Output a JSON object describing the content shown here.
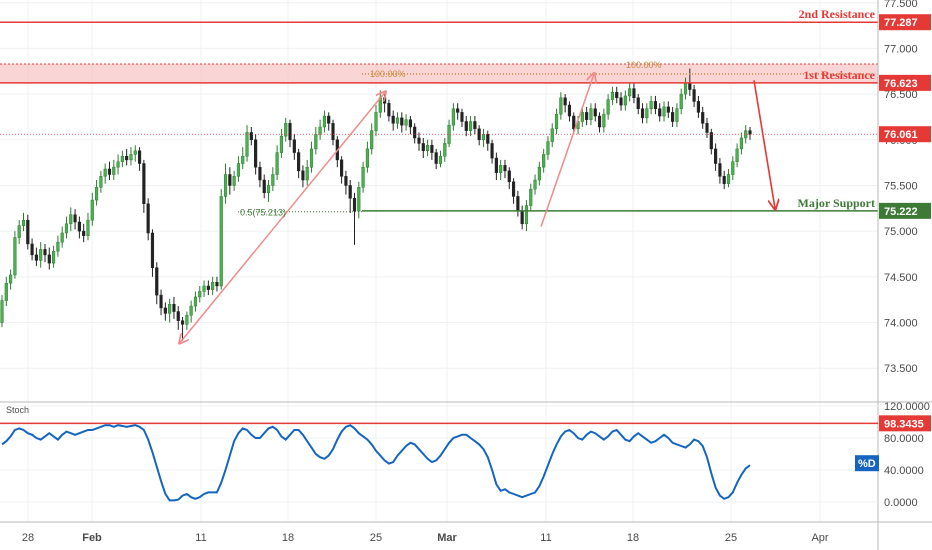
{
  "chart_data": [
    {
      "type": "candlestick",
      "price_axis": {
        "ylim": [
          73.13,
          77.53
        ],
        "ticks": [
          "77.500",
          "77.000",
          "76.500",
          "76.000",
          "75.500",
          "75.000",
          "74.500",
          "74.000",
          "73.500"
        ],
        "tick_values": [
          77.5,
          77.0,
          76.5,
          76.0,
          75.5,
          75.0,
          74.5,
          74.0,
          73.5
        ]
      },
      "date_axis": {
        "labels": [
          "28",
          "Feb",
          "11",
          "18",
          "25",
          "Mar",
          "11",
          "18",
          "25",
          "Apr"
        ],
        "bold": [
          false,
          true,
          false,
          false,
          false,
          true,
          false,
          false,
          false,
          false
        ]
      },
      "levels": {
        "second_resistance": {
          "label": "2nd Resistance",
          "value": 77.287,
          "tag": "77.287",
          "color": "#e53935"
        },
        "first_resistance": {
          "label": "1st Resistance",
          "value": 76.623,
          "tag": "76.623",
          "color": "#e53935"
        },
        "last_price": {
          "value": 76.061,
          "tag": "76.061",
          "color": "#e53935"
        },
        "major_support": {
          "label": "Major Support",
          "value": 75.222,
          "tag": "75.222",
          "color": "#3d7a36"
        }
      },
      "fibonacci": {
        "label_a": "100.00%",
        "label_b": "100.00%",
        "label_c": "0.5(75.213)"
      },
      "candles": [
        [
          74.0,
          74.24,
          74.3,
          73.95
        ],
        [
          74.24,
          74.43,
          74.5,
          74.18
        ],
        [
          74.43,
          74.52,
          74.58,
          74.36
        ],
        [
          74.52,
          74.93,
          75.0,
          74.48
        ],
        [
          74.93,
          75.06,
          75.12,
          74.86
        ],
        [
          75.06,
          75.12,
          75.2,
          75.0
        ],
        [
          75.12,
          74.86,
          75.18,
          74.8
        ],
        [
          74.86,
          74.74,
          74.92,
          74.68
        ],
        [
          74.74,
          74.68,
          74.82,
          74.62
        ],
        [
          74.68,
          74.8,
          74.88,
          74.6
        ],
        [
          74.8,
          74.74,
          74.86,
          74.66
        ],
        [
          74.74,
          74.65,
          74.82,
          74.58
        ],
        [
          74.65,
          74.78,
          74.84,
          74.6
        ],
        [
          74.78,
          74.88,
          74.95,
          74.72
        ],
        [
          74.88,
          74.98,
          75.05,
          74.82
        ],
        [
          74.98,
          75.08,
          75.16,
          74.92
        ],
        [
          75.08,
          75.18,
          75.26,
          75.0
        ],
        [
          75.18,
          75.1,
          75.24,
          75.02
        ],
        [
          75.1,
          75.0,
          75.16,
          74.92
        ],
        [
          75.0,
          74.95,
          75.08,
          74.88
        ],
        [
          74.95,
          75.12,
          75.2,
          74.9
        ],
        [
          75.12,
          75.34,
          75.42,
          75.06
        ],
        [
          75.34,
          75.48,
          75.56,
          75.28
        ],
        [
          75.48,
          75.6,
          75.66,
          75.42
        ],
        [
          75.6,
          75.68,
          75.74,
          75.52
        ],
        [
          75.68,
          75.62,
          75.76,
          75.56
        ],
        [
          75.62,
          75.7,
          75.78,
          75.56
        ],
        [
          75.7,
          75.76,
          75.84,
          75.62
        ],
        [
          75.76,
          75.82,
          75.88,
          75.7
        ],
        [
          75.82,
          75.78,
          75.9,
          75.72
        ],
        [
          75.78,
          75.84,
          75.92,
          75.72
        ],
        [
          75.84,
          75.88,
          75.94,
          75.76
        ],
        [
          75.88,
          75.74,
          75.92,
          75.66
        ],
        [
          75.74,
          75.3,
          75.78,
          75.2
        ],
        [
          75.3,
          74.98,
          75.36,
          74.9
        ],
        [
          74.98,
          74.6,
          75.02,
          74.5
        ],
        [
          74.6,
          74.3,
          74.66,
          74.2
        ],
        [
          74.3,
          74.16,
          74.36,
          74.08
        ],
        [
          74.16,
          74.1,
          74.22,
          74.02
        ],
        [
          74.1,
          74.2,
          74.26,
          74.0
        ],
        [
          74.2,
          74.12,
          74.28,
          74.04
        ],
        [
          74.12,
          74.02,
          74.18,
          73.92
        ],
        [
          74.02,
          73.98,
          74.06,
          73.8
        ],
        [
          73.98,
          74.08,
          74.12,
          73.92
        ],
        [
          74.08,
          74.18,
          74.24,
          74.0
        ],
        [
          74.18,
          74.28,
          74.34,
          74.12
        ],
        [
          74.28,
          74.34,
          74.4,
          74.22
        ],
        [
          74.34,
          74.4,
          74.46,
          74.28
        ],
        [
          74.4,
          74.36,
          74.46,
          74.3
        ],
        [
          74.36,
          74.44,
          74.5,
          74.3
        ],
        [
          74.44,
          74.4,
          74.5,
          74.34
        ],
        [
          74.4,
          75.38,
          75.46,
          74.36
        ],
        [
          75.38,
          75.62,
          75.74,
          75.3
        ],
        [
          75.62,
          75.5,
          75.7,
          75.4
        ],
        [
          75.5,
          75.6,
          75.66,
          75.44
        ],
        [
          75.6,
          75.74,
          75.82,
          75.54
        ],
        [
          75.74,
          75.82,
          75.92,
          75.68
        ],
        [
          75.82,
          76.08,
          76.16,
          75.76
        ],
        [
          76.08,
          76.0,
          76.14,
          75.94
        ],
        [
          76.0,
          75.7,
          76.06,
          75.62
        ],
        [
          75.7,
          75.56,
          75.76,
          75.48
        ],
        [
          75.56,
          75.42,
          75.62,
          75.36
        ],
        [
          75.42,
          75.5,
          75.56,
          75.32
        ],
        [
          75.5,
          75.62,
          75.7,
          75.44
        ],
        [
          75.62,
          75.86,
          75.94,
          75.56
        ],
        [
          75.86,
          76.04,
          76.12,
          75.8
        ],
        [
          76.04,
          76.18,
          76.24,
          75.98
        ],
        [
          76.18,
          76.0,
          76.22,
          75.92
        ],
        [
          76.0,
          75.86,
          76.06,
          75.78
        ],
        [
          75.86,
          75.66,
          75.9,
          75.58
        ],
        [
          75.66,
          75.56,
          75.72,
          75.48
        ],
        [
          75.56,
          75.7,
          75.78,
          75.5
        ],
        [
          75.7,
          75.9,
          75.98,
          75.64
        ],
        [
          75.9,
          76.06,
          76.14,
          75.84
        ],
        [
          76.06,
          76.14,
          76.22,
          76.0
        ],
        [
          76.14,
          76.26,
          76.32,
          76.08
        ],
        [
          76.26,
          76.18,
          76.3,
          76.1
        ],
        [
          76.18,
          76.0,
          76.22,
          75.94
        ],
        [
          76.0,
          75.78,
          76.04,
          75.7
        ],
        [
          75.78,
          75.6,
          75.82,
          75.52
        ],
        [
          75.6,
          75.5,
          75.66,
          75.4
        ],
        [
          75.5,
          75.36,
          75.56,
          75.2
        ],
        [
          75.36,
          75.22,
          75.42,
          74.85
        ],
        [
          75.22,
          75.48,
          75.54,
          75.14
        ],
        [
          75.48,
          75.7,
          75.76,
          75.42
        ],
        [
          75.7,
          75.9,
          75.98,
          75.64
        ],
        [
          75.9,
          76.1,
          76.18,
          75.84
        ],
        [
          76.1,
          76.3,
          76.38,
          76.04
        ],
        [
          76.3,
          76.46,
          76.54,
          76.24
        ],
        [
          76.46,
          76.4,
          76.5,
          76.3
        ],
        [
          76.4,
          76.26,
          76.44,
          76.2
        ],
        [
          76.26,
          76.18,
          76.32,
          76.1
        ],
        [
          76.18,
          76.24,
          76.3,
          76.12
        ],
        [
          76.24,
          76.16,
          76.3,
          76.08
        ],
        [
          76.16,
          76.22,
          76.28,
          76.1
        ],
        [
          76.22,
          76.14,
          76.26,
          76.06
        ],
        [
          76.14,
          76.02,
          76.18,
          75.96
        ],
        [
          76.02,
          75.96,
          76.08,
          75.88
        ],
        [
          75.96,
          75.88,
          76.02,
          75.8
        ],
        [
          75.88,
          75.94,
          76.0,
          75.82
        ],
        [
          75.94,
          75.86,
          76.0,
          75.78
        ],
        [
          75.86,
          75.74,
          75.9,
          75.68
        ],
        [
          75.74,
          75.82,
          75.88,
          75.7
        ],
        [
          75.82,
          75.96,
          76.02,
          75.76
        ],
        [
          75.96,
          76.16,
          76.22,
          75.92
        ],
        [
          76.16,
          76.34,
          76.4,
          76.1
        ],
        [
          76.34,
          76.3,
          76.4,
          76.22
        ],
        [
          76.3,
          76.2,
          76.34,
          76.14
        ],
        [
          76.2,
          76.1,
          76.26,
          76.04
        ],
        [
          76.1,
          76.2,
          76.26,
          76.04
        ],
        [
          76.2,
          76.12,
          76.26,
          76.06
        ],
        [
          76.12,
          76.0,
          76.16,
          75.94
        ],
        [
          76.0,
          76.06,
          76.12,
          75.92
        ],
        [
          76.06,
          75.96,
          76.1,
          75.88
        ],
        [
          75.96,
          75.8,
          76.0,
          75.74
        ],
        [
          75.8,
          75.64,
          75.86,
          75.56
        ],
        [
          75.64,
          75.72,
          75.78,
          75.56
        ],
        [
          75.72,
          75.66,
          75.78,
          75.58
        ],
        [
          75.66,
          75.54,
          75.7,
          75.46
        ],
        [
          75.54,
          75.38,
          75.58,
          75.3
        ],
        [
          75.38,
          75.22,
          75.44,
          75.16
        ],
        [
          75.22,
          75.08,
          75.28,
          75.02
        ],
        [
          75.08,
          75.28,
          75.34,
          75.0
        ],
        [
          75.28,
          75.46,
          75.52,
          75.22
        ],
        [
          75.46,
          75.56,
          75.62,
          75.4
        ],
        [
          75.56,
          75.7,
          75.76,
          75.5
        ],
        [
          75.7,
          75.84,
          75.9,
          75.64
        ],
        [
          75.84,
          75.98,
          76.04,
          75.78
        ],
        [
          75.98,
          76.12,
          76.18,
          75.92
        ],
        [
          76.12,
          76.28,
          76.34,
          76.06
        ],
        [
          76.28,
          76.46,
          76.52,
          76.22
        ],
        [
          76.46,
          76.38,
          76.5,
          76.3
        ],
        [
          76.38,
          76.26,
          76.42,
          76.2
        ],
        [
          76.26,
          76.12,
          76.3,
          76.06
        ],
        [
          76.12,
          76.2,
          76.26,
          76.06
        ],
        [
          76.2,
          76.3,
          76.36,
          76.14
        ],
        [
          76.3,
          76.22,
          76.36,
          76.16
        ],
        [
          76.22,
          76.34,
          76.4,
          76.16
        ],
        [
          76.34,
          76.26,
          76.4,
          76.2
        ],
        [
          76.26,
          76.14,
          76.3,
          76.08
        ],
        [
          76.14,
          76.28,
          76.34,
          76.08
        ],
        [
          76.28,
          76.44,
          76.5,
          76.22
        ],
        [
          76.44,
          76.52,
          76.58,
          76.38
        ],
        [
          76.52,
          76.46,
          76.58,
          76.4
        ],
        [
          76.46,
          76.38,
          76.52,
          76.32
        ],
        [
          76.38,
          76.48,
          76.54,
          76.32
        ],
        [
          76.48,
          76.56,
          76.62,
          76.42
        ],
        [
          76.56,
          76.46,
          76.62,
          76.4
        ],
        [
          76.46,
          76.34,
          76.5,
          76.28
        ],
        [
          76.34,
          76.24,
          76.4,
          76.18
        ],
        [
          76.24,
          76.34,
          76.4,
          76.18
        ],
        [
          76.34,
          76.42,
          76.48,
          76.28
        ],
        [
          76.42,
          76.34,
          76.48,
          76.28
        ],
        [
          76.34,
          76.26,
          76.4,
          76.2
        ],
        [
          76.26,
          76.36,
          76.42,
          76.2
        ],
        [
          76.36,
          76.3,
          76.42,
          76.24
        ],
        [
          76.3,
          76.2,
          76.36,
          76.14
        ],
        [
          76.2,
          76.34,
          76.4,
          76.14
        ],
        [
          76.34,
          76.5,
          76.56,
          76.28
        ],
        [
          76.5,
          76.62,
          76.68,
          76.44
        ],
        [
          76.62,
          76.55,
          76.78,
          76.48
        ],
        [
          76.55,
          76.42,
          76.6,
          76.36
        ],
        [
          76.42,
          76.3,
          76.48,
          76.24
        ],
        [
          76.3,
          76.18,
          76.36,
          76.12
        ],
        [
          76.18,
          76.08,
          76.24,
          76.02
        ],
        [
          76.08,
          75.9,
          76.12,
          75.84
        ],
        [
          75.9,
          75.74,
          75.96,
          75.66
        ],
        [
          75.74,
          75.6,
          75.8,
          75.52
        ],
        [
          75.6,
          75.52,
          75.66,
          75.46
        ],
        [
          75.52,
          75.62,
          75.68,
          75.48
        ],
        [
          75.62,
          75.76,
          75.82,
          75.56
        ],
        [
          75.76,
          75.9,
          75.96,
          75.7
        ],
        [
          75.9,
          76.02,
          76.08,
          75.84
        ],
        [
          76.02,
          76.1,
          76.16,
          75.96
        ],
        [
          76.1,
          76.06,
          76.14,
          76.0
        ]
      ],
      "stochastic": {
        "label": "Stoch",
        "ylim": [
          -25,
          125
        ],
        "ticks": [
          "120.0000",
          "80.0000",
          "40.0000",
          "0.0000"
        ],
        "tick_values": [
          120,
          80,
          40,
          0
        ],
        "overbought_level": {
          "value": 98.3435,
          "tag": "98.3435",
          "color": "#e53935"
        },
        "series_name": "%D",
        "series_color": "#1565c0",
        "values": [
          72,
          76,
          82,
          90,
          92,
          90,
          86,
          84,
          80,
          78,
          82,
          86,
          82,
          78,
          84,
          88,
          86,
          84,
          86,
          88,
          90,
          90,
          92,
          94,
          96,
          96,
          94,
          96,
          95,
          94,
          95,
          96,
          94,
          90,
          78,
          62,
          44,
          26,
          10,
          2,
          2,
          3,
          8,
          10,
          6,
          4,
          6,
          10,
          12,
          12,
          12,
          24,
          40,
          58,
          76,
          86,
          92,
          90,
          84,
          80,
          80,
          86,
          92,
          94,
          90,
          82,
          78,
          84,
          90,
          90,
          84,
          76,
          68,
          60,
          56,
          54,
          58,
          66,
          78,
          88,
          94,
          96,
          92,
          86,
          82,
          78,
          72,
          64,
          58,
          52,
          48,
          50,
          58,
          64,
          70,
          74,
          72,
          66,
          60,
          54,
          50,
          52,
          58,
          66,
          74,
          80,
          82,
          84,
          84,
          80,
          76,
          72,
          66,
          56,
          40,
          22,
          14,
          16,
          12,
          10,
          8,
          6,
          8,
          10,
          12,
          20,
          32,
          46,
          60,
          72,
          82,
          88,
          90,
          86,
          80,
          78,
          84,
          88,
          86,
          82,
          78,
          82,
          88,
          90,
          84,
          78,
          76,
          82,
          86,
          82,
          78,
          74,
          76,
          80,
          84,
          80,
          74,
          72,
          70,
          68,
          72,
          78,
          76,
          70,
          56,
          36,
          18,
          8,
          4,
          6,
          12,
          24,
          34,
          42,
          46
        ]
      }
    }
  ]
}
